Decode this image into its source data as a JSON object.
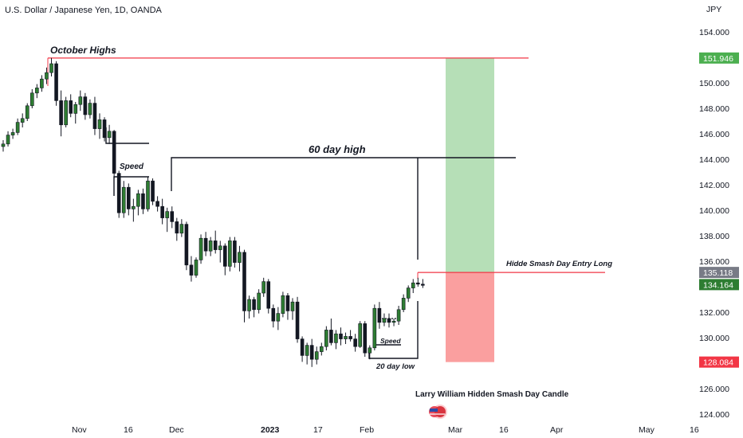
{
  "header": {
    "symbol_title": "U.S. Dollar / Japanese Yen, 1D, OANDA"
  },
  "chart_data": {
    "type": "candlestick",
    "currency_label": "JPY",
    "y_ticks": [
      "154.000",
      "152.000",
      "150.000",
      "148.000",
      "146.000",
      "144.000",
      "142.000",
      "140.000",
      "138.000",
      "136.000",
      "134.000",
      "132.000",
      "130.000",
      "128.000",
      "126.000",
      "124.000"
    ],
    "x_ticks": [
      {
        "label": "Nov",
        "bold": false
      },
      {
        "label": "16",
        "bold": false
      },
      {
        "label": "Dec",
        "bold": false
      },
      {
        "label": "2023",
        "bold": true
      },
      {
        "label": "17",
        "bold": false
      },
      {
        "label": "Feb",
        "bold": false
      },
      {
        "label": "Mar",
        "bold": false
      },
      {
        "label": "16",
        "bold": false
      },
      {
        "label": "Apr",
        "bold": false
      },
      {
        "label": "May",
        "bold": false
      },
      {
        "label": "16",
        "bold": false
      }
    ],
    "price_badges": [
      {
        "value": "151.946",
        "color": "#4caf50"
      },
      {
        "value": "135.118",
        "color": "#787b86"
      },
      {
        "value": "134.164",
        "color": "#2e7d32"
      },
      {
        "value": "128.084",
        "color": "#f23645"
      }
    ],
    "annotations": {
      "october_highs": "October Highs",
      "sixty_day_high": "60 day high",
      "speed_1": "Speed",
      "speed_2": "Speed",
      "twenty_day_low": "20 day low",
      "entry": "Hidde Smash Day Entry Long",
      "footer": "Larry William Hidden Smash Day Candle"
    },
    "position": {
      "entry": 135.118,
      "target": 151.946,
      "stop": 128.084
    },
    "levels": {
      "october_high": 151.946,
      "sixty_day_high": 144.0,
      "entry_line": 135.118
    },
    "candles": [
      [
        145,
        145.5,
        144.6,
        145.2
      ],
      [
        145.2,
        146.2,
        145,
        145.9
      ],
      [
        145.9,
        146.4,
        145.6,
        146.1
      ],
      [
        146.1,
        147.2,
        145.9,
        146.9
      ],
      [
        146.9,
        147.6,
        146.5,
        147.2
      ],
      [
        147.2,
        148.4,
        147,
        148.2
      ],
      [
        148.2,
        149.5,
        148,
        149.2
      ],
      [
        149.2,
        149.9,
        148.8,
        149.6
      ],
      [
        149.6,
        150.6,
        149.3,
        150.3
      ],
      [
        150.3,
        151.2,
        149.9,
        150.8
      ],
      [
        150.8,
        151.95,
        150.5,
        151.5
      ],
      [
        151.5,
        151.7,
        148.2,
        148.6
      ],
      [
        148.6,
        149.4,
        145.8,
        146.7
      ],
      [
        146.7,
        148.9,
        146.5,
        148.6
      ],
      [
        148.6,
        149.1,
        147.3,
        147.6
      ],
      [
        147.6,
        148.5,
        146.8,
        148.3
      ],
      [
        148.3,
        149.4,
        147.8,
        148.9
      ],
      [
        148.9,
        149.2,
        147.1,
        147.5
      ],
      [
        147.5,
        148.7,
        147.2,
        148.4
      ],
      [
        148.4,
        148.9,
        145.9,
        146.4
      ],
      [
        146.4,
        147.6,
        145.6,
        147.1
      ],
      [
        147.1,
        147.3,
        145.4,
        145.7
      ],
      [
        145.7,
        146.7,
        145.2,
        146.2
      ],
      [
        146.2,
        146.3,
        142.5,
        142.9
      ],
      [
        142.9,
        143.1,
        139.4,
        139.8
      ],
      [
        139.8,
        142.3,
        139.4,
        141.8
      ],
      [
        141.8,
        142.1,
        139.6,
        140.1
      ],
      [
        140.1,
        140.9,
        139.1,
        140.3
      ],
      [
        140.3,
        141.6,
        139.6,
        141.3
      ],
      [
        141.3,
        141.7,
        139.7,
        140.1
      ],
      [
        140.1,
        142.6,
        139.9,
        142.3
      ],
      [
        142.3,
        142.5,
        140.4,
        140.7
      ],
      [
        140.7,
        141.1,
        139.9,
        140.3
      ],
      [
        140.3,
        140.9,
        138.9,
        139.4
      ],
      [
        139.4,
        140.2,
        138.3,
        139.9
      ],
      [
        139.9,
        140.3,
        138.6,
        139.1
      ],
      [
        139.1,
        139.4,
        137.6,
        138.2
      ],
      [
        138.2,
        139.3,
        137.9,
        138.9
      ],
      [
        138.9,
        139.1,
        135.3,
        135.7
      ],
      [
        135.7,
        136.4,
        134.4,
        134.9
      ],
      [
        134.9,
        136.3,
        134.7,
        136.1
      ],
      [
        136.1,
        138.1,
        135.8,
        137.8
      ],
      [
        137.8,
        138.3,
        136.4,
        136.8
      ],
      [
        136.8,
        137.9,
        136.4,
        137.6
      ],
      [
        137.6,
        138.4,
        136.6,
        136.9
      ],
      [
        136.9,
        137.6,
        135.9,
        137.2
      ],
      [
        137.2,
        137.4,
        134.9,
        135.6
      ],
      [
        135.6,
        137.9,
        135.2,
        137.6
      ],
      [
        137.6,
        137.9,
        135.5,
        135.9
      ],
      [
        135.9,
        137.2,
        135.2,
        136.7
      ],
      [
        136.7,
        136.9,
        131.2,
        132.1
      ],
      [
        132.1,
        133.3,
        131.5,
        133.0
      ],
      [
        133.0,
        133.2,
        131.6,
        132.2
      ],
      [
        132.2,
        133.8,
        131.9,
        133.5
      ],
      [
        133.5,
        134.7,
        133.2,
        134.4
      ],
      [
        134.4,
        134.6,
        131.9,
        132.3
      ],
      [
        132.3,
        132.6,
        130.8,
        131.3
      ],
      [
        131.3,
        132.4,
        130.6,
        131.9
      ],
      [
        131.9,
        133.6,
        131.6,
        133.3
      ],
      [
        133.3,
        133.5,
        131.4,
        132.1
      ],
      [
        132.1,
        133.1,
        131.4,
        132.8
      ],
      [
        132.8,
        133.2,
        129.6,
        129.9
      ],
      [
        129.9,
        130.1,
        128.1,
        128.6
      ],
      [
        128.6,
        129.6,
        127.9,
        129.4
      ],
      [
        129.4,
        129.9,
        127.7,
        128.3
      ],
      [
        128.3,
        129.3,
        127.9,
        128.9
      ],
      [
        128.9,
        129.6,
        128.6,
        129.3
      ],
      [
        129.3,
        130.9,
        129.0,
        130.6
      ],
      [
        130.6,
        131.5,
        129.4,
        129.6
      ],
      [
        129.6,
        130.6,
        129.1,
        130.3
      ],
      [
        130.3,
        130.8,
        129.4,
        129.9
      ],
      [
        129.9,
        130.4,
        129.5,
        130.1
      ],
      [
        130.1,
        130.6,
        129.7,
        129.9
      ],
      [
        129.9,
        130.3,
        128.9,
        129.3
      ],
      [
        129.3,
        131.3,
        129.2,
        131.1
      ],
      [
        131.1,
        131.3,
        128.5,
        128.8
      ],
      [
        128.8,
        129.4,
        128.3,
        129.2
      ],
      [
        129.2,
        132.6,
        129.0,
        132.3
      ],
      [
        132.3,
        132.8,
        130.7,
        131.2
      ],
      [
        131.2,
        131.9,
        130.9,
        131.5
      ],
      [
        131.5,
        131.9,
        130.8,
        131.2
      ],
      [
        131.2,
        131.5,
        130.9,
        131.3
      ],
      [
        131.3,
        132.5,
        131.0,
        132.2
      ],
      [
        132.2,
        133.4,
        132.0,
        133.1
      ],
      [
        133.1,
        134.1,
        132.8,
        133.9
      ],
      [
        133.9,
        134.6,
        133.5,
        134.3
      ],
      [
        134.3,
        134.7,
        134.0,
        134.2
      ],
      [
        134.2,
        134.6,
        133.9,
        134.164
      ]
    ]
  }
}
